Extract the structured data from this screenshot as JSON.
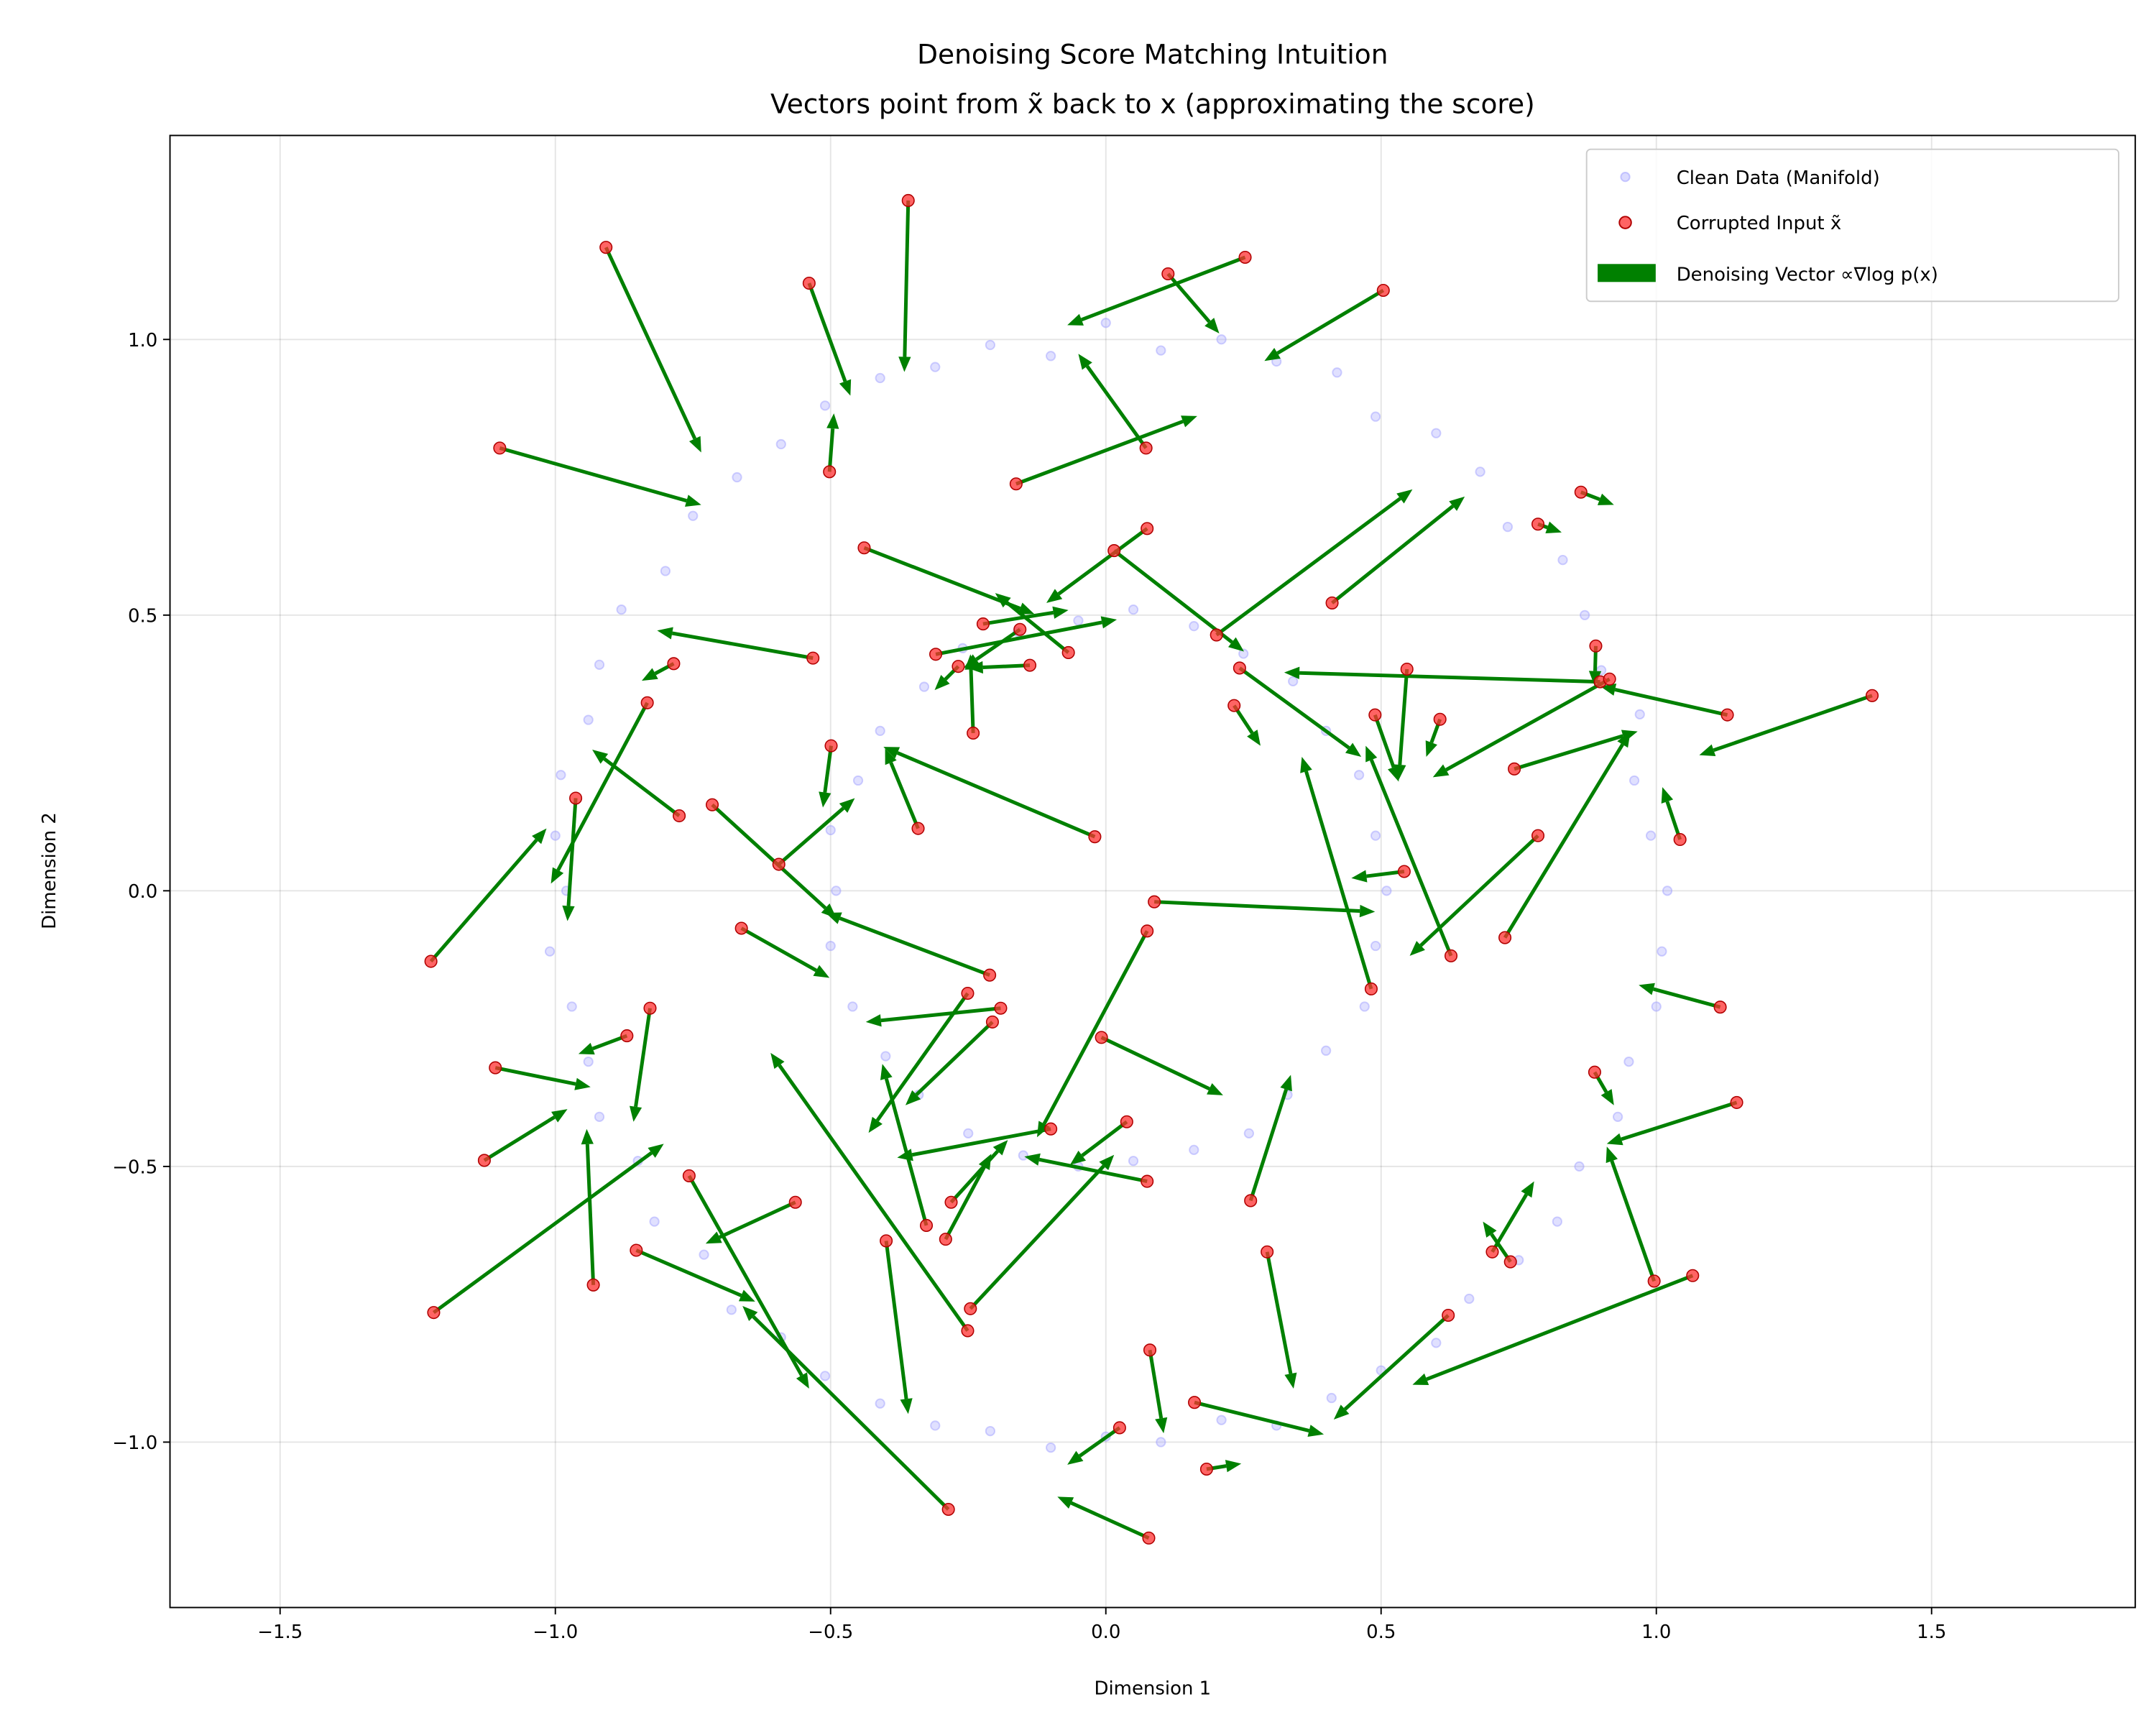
{
  "chart_data": {
    "type": "scatter",
    "title": "Denoising Score Matching Intuition",
    "subtitle": "Vectors point from x̃ back to x (approximating the score)",
    "xlabel": "Dimension 1",
    "ylabel": "Dimension 2",
    "xlim": [
      -1.7,
      1.87
    ],
    "ylim": [
      -1.3,
      1.37
    ],
    "xticks": [
      -1.5,
      -1.0,
      -0.5,
      0.0,
      0.5,
      1.0,
      1.5
    ],
    "xtick_labels": [
      "−1.5",
      "−1.0",
      "−0.5",
      "0.0",
      "0.5",
      "1.0",
      "1.5"
    ],
    "yticks": [
      -1.0,
      -0.5,
      0.0,
      0.5,
      1.0
    ],
    "ytick_labels": [
      "−1.0",
      "−0.5",
      "0.0",
      "0.5",
      "1.0"
    ],
    "grid": true,
    "legend_placement": "top-right",
    "legend": [
      {
        "label": "Clean Data (Manifold)",
        "kind": "point",
        "color": "#aaaaff"
      },
      {
        "label": "Corrupted Input x̃",
        "kind": "point",
        "color": "#ff3333"
      },
      {
        "label": "Denoising Vector ∝∇log p(x)",
        "kind": "patch",
        "color": "#008000"
      }
    ],
    "colors": {
      "clean": "#9999ff",
      "corrupted": "#ff3030",
      "corrupted_edge": "#b00000",
      "vector": "#008000"
    },
    "clean_data": [
      [
        1.02,
        0.0
      ],
      [
        0.99,
        0.1
      ],
      [
        0.96,
        0.2
      ],
      [
        0.97,
        0.32
      ],
      [
        0.9,
        0.4
      ],
      [
        0.87,
        0.5
      ],
      [
        0.83,
        0.6
      ],
      [
        0.73,
        0.66
      ],
      [
        0.68,
        0.76
      ],
      [
        0.6,
        0.83
      ],
      [
        0.49,
        0.86
      ],
      [
        0.42,
        0.94
      ],
      [
        0.31,
        0.96
      ],
      [
        0.21,
        1.0
      ],
      [
        0.1,
        0.98
      ],
      [
        0.0,
        1.03
      ],
      [
        -0.1,
        0.97
      ],
      [
        -0.21,
        0.99
      ],
      [
        -0.31,
        0.95
      ],
      [
        -0.41,
        0.93
      ],
      [
        -0.51,
        0.88
      ],
      [
        -0.59,
        0.81
      ],
      [
        -0.67,
        0.75
      ],
      [
        -0.75,
        0.68
      ],
      [
        -0.8,
        0.58
      ],
      [
        -0.88,
        0.51
      ],
      [
        -0.92,
        0.41
      ],
      [
        -0.94,
        0.31
      ],
      [
        -0.99,
        0.21
      ],
      [
        -1.0,
        0.1
      ],
      [
        -0.98,
        0.0
      ],
      [
        -1.01,
        -0.11
      ],
      [
        -0.97,
        -0.21
      ],
      [
        -0.94,
        -0.31
      ],
      [
        -0.92,
        -0.41
      ],
      [
        -0.85,
        -0.49
      ],
      [
        -0.82,
        -0.6
      ],
      [
        -0.73,
        -0.66
      ],
      [
        -0.68,
        -0.76
      ],
      [
        -0.59,
        -0.81
      ],
      [
        -0.51,
        -0.88
      ],
      [
        -0.41,
        -0.93
      ],
      [
        -0.31,
        -0.97
      ],
      [
        -0.21,
        -0.98
      ],
      [
        -0.1,
        -1.01
      ],
      [
        0.0,
        -0.99
      ],
      [
        0.1,
        -1.0
      ],
      [
        0.21,
        -0.96
      ],
      [
        0.31,
        -0.97
      ],
      [
        0.41,
        -0.92
      ],
      [
        0.5,
        -0.87
      ],
      [
        0.6,
        -0.82
      ],
      [
        0.66,
        -0.74
      ],
      [
        0.75,
        -0.67
      ],
      [
        0.82,
        -0.6
      ],
      [
        0.86,
        -0.5
      ],
      [
        0.93,
        -0.41
      ],
      [
        0.95,
        -0.31
      ],
      [
        1.0,
        -0.21
      ],
      [
        1.01,
        -0.11
      ],
      [
        0.51,
        0.0
      ],
      [
        0.49,
        0.1
      ],
      [
        0.46,
        0.21
      ],
      [
        0.4,
        0.29
      ],
      [
        0.34,
        0.38
      ],
      [
        0.25,
        0.43
      ],
      [
        0.16,
        0.48
      ],
      [
        0.05,
        0.51
      ],
      [
        -0.05,
        0.49
      ],
      [
        -0.16,
        0.47
      ],
      [
        -0.26,
        0.44
      ],
      [
        -0.33,
        0.37
      ],
      [
        -0.41,
        0.29
      ],
      [
        -0.45,
        0.2
      ],
      [
        -0.5,
        0.11
      ],
      [
        -0.49,
        0.0
      ],
      [
        -0.5,
        -0.1
      ],
      [
        -0.46,
        -0.21
      ],
      [
        -0.4,
        -0.3
      ],
      [
        -0.34,
        -0.37
      ],
      [
        -0.25,
        -0.44
      ],
      [
        -0.15,
        -0.48
      ],
      [
        -0.05,
        -0.5
      ],
      [
        0.05,
        -0.49
      ],
      [
        0.16,
        -0.47
      ],
      [
        0.26,
        -0.44
      ],
      [
        0.33,
        -0.37
      ],
      [
        0.4,
        -0.29
      ],
      [
        0.47,
        -0.21
      ],
      [
        0.49,
        -0.1
      ]
    ],
    "vectors": [
      {
        "from": [
          -0.908,
          1.167
        ],
        "to": [
          -0.735,
          0.795
        ]
      },
      {
        "from": [
          -0.359,
          1.252
        ],
        "to": [
          -0.366,
          0.941
        ]
      },
      {
        "from": [
          -0.539,
          1.102
        ],
        "to": [
          -0.464,
          0.898
        ]
      },
      {
        "from": [
          -1.101,
          0.803
        ],
        "to": [
          -0.735,
          0.7
        ]
      },
      {
        "from": [
          -0.502,
          0.76
        ],
        "to": [
          -0.494,
          0.866
        ]
      },
      {
        "from": [
          0.073,
          0.803
        ],
        "to": [
          -0.05,
          0.974
        ]
      },
      {
        "from": [
          -0.163,
          0.738
        ],
        "to": [
          0.166,
          0.861
        ]
      },
      {
        "from": [
          0.113,
          1.119
        ],
        "to": [
          0.206,
          1.011
        ]
      },
      {
        "from": [
          0.253,
          1.149
        ],
        "to": [
          -0.07,
          1.026
        ]
      },
      {
        "from": [
          0.504,
          1.089
        ],
        "to": [
          0.288,
          0.961
        ]
      },
      {
        "from": [
          -0.439,
          0.622
        ],
        "to": [
          -0.13,
          0.502
        ]
      },
      {
        "from": [
          0.075,
          0.657
        ],
        "to": [
          -0.108,
          0.522
        ]
      },
      {
        "from": [
          0.015,
          0.617
        ],
        "to": [
          0.251,
          0.434
        ]
      },
      {
        "from": [
          -0.532,
          0.422
        ],
        "to": [
          -0.815,
          0.472
        ]
      },
      {
        "from": [
          -0.785,
          0.412
        ],
        "to": [
          -0.843,
          0.381
        ]
      },
      {
        "from": [
          -0.833,
          0.341
        ],
        "to": [
          -1.008,
          0.013
        ]
      },
      {
        "from": [
          -0.775,
          0.136
        ],
        "to": [
          -0.933,
          0.256
        ]
      },
      {
        "from": [
          -0.963,
          0.168
        ],
        "to": [
          -0.978,
          -0.055
        ]
      },
      {
        "from": [
          -1.226,
          -0.128
        ],
        "to": [
          -1.016,
          0.113
        ]
      },
      {
        "from": [
          -0.341,
          0.113
        ],
        "to": [
          -0.401,
          0.258
        ]
      },
      {
        "from": [
          -0.02,
          0.098
        ],
        "to": [
          -0.404,
          0.261
        ]
      },
      {
        "from": [
          -0.499,
          0.263
        ],
        "to": [
          -0.514,
          0.151
        ]
      },
      {
        "from": [
          -0.715,
          0.156
        ],
        "to": [
          -0.489,
          -0.05
        ]
      },
      {
        "from": [
          -0.594,
          0.048
        ],
        "to": [
          -0.456,
          0.168
        ]
      },
      {
        "from": [
          -0.211,
          -0.153
        ],
        "to": [
          -0.509,
          -0.04
        ]
      },
      {
        "from": [
          -0.662,
          -0.068
        ],
        "to": [
          -0.502,
          -0.158
        ]
      },
      {
        "from": [
          -0.251,
          -0.186
        ],
        "to": [
          -0.431,
          -0.439
        ]
      },
      {
        "from": [
          -0.191,
          -0.213
        ],
        "to": [
          -0.436,
          -0.238
        ]
      },
      {
        "from": [
          -0.206,
          -0.238
        ],
        "to": [
          -0.364,
          -0.389
        ]
      },
      {
        "from": [
          -0.828,
          -0.213
        ],
        "to": [
          -0.858,
          -0.419
        ]
      },
      {
        "from": [
          -0.87,
          -0.263
        ],
        "to": [
          -0.958,
          -0.296
        ]
      },
      {
        "from": [
          -1.109,
          -0.321
        ],
        "to": [
          -0.936,
          -0.356
        ]
      },
      {
        "from": [
          -1.129,
          -0.489
        ],
        "to": [
          -0.978,
          -0.396
        ]
      },
      {
        "from": [
          -0.931,
          -0.715
        ],
        "to": [
          -0.943,
          -0.432
        ]
      },
      {
        "from": [
          -1.221,
          -0.765
        ],
        "to": [
          -0.803,
          -0.459
        ]
      },
      {
        "from": [
          -0.853,
          -0.652
        ],
        "to": [
          -0.637,
          -0.745
        ]
      },
      {
        "from": [
          -0.757,
          -0.517
        ],
        "to": [
          -0.539,
          -0.903
        ]
      },
      {
        "from": [
          -0.564,
          -0.565
        ],
        "to": [
          -0.727,
          -0.64
        ]
      },
      {
        "from": [
          -0.286,
          -1.122
        ],
        "to": [
          -0.66,
          -0.753
        ]
      },
      {
        "from": [
          -0.399,
          -0.635
        ],
        "to": [
          -0.359,
          -0.949
        ]
      },
      {
        "from": [
          -0.246,
          -0.758
        ],
        "to": [
          0.015,
          -0.479
        ]
      },
      {
        "from": [
          -0.251,
          -0.798
        ],
        "to": [
          -0.609,
          -0.294
        ]
      },
      {
        "from": [
          -0.326,
          -0.607
        ],
        "to": [
          -0.406,
          -0.314
        ]
      },
      {
        "from": [
          -0.291,
          -0.632
        ],
        "to": [
          -0.208,
          -0.477
        ]
      },
      {
        "from": [
          -0.281,
          -0.565
        ],
        "to": [
          -0.178,
          -0.452
        ]
      },
      {
        "from": [
          -0.1,
          -0.432
        ],
        "to": [
          -0.379,
          -0.484
        ]
      },
      {
        "from": [
          0.075,
          -0.527
        ],
        "to": [
          -0.148,
          -0.482
        ]
      },
      {
        "from": [
          0.038,
          -0.419
        ],
        "to": [
          -0.065,
          -0.497
        ]
      },
      {
        "from": [
          -0.008,
          -0.266
        ],
        "to": [
          0.213,
          -0.371
        ]
      },
      {
        "from": [
          0.075,
          -0.073
        ],
        "to": [
          -0.125,
          -0.447
        ]
      },
      {
        "from": [
          0.088,
          -0.02
        ],
        "to": [
          0.489,
          -0.038
        ]
      },
      {
        "from": [
          0.263,
          -0.562
        ],
        "to": [
          0.336,
          -0.334
        ]
      },
      {
        "from": [
          0.293,
          -0.655
        ],
        "to": [
          0.341,
          -0.903
        ]
      },
      {
        "from": [
          0.08,
          -0.833
        ],
        "to": [
          0.105,
          -0.984
        ]
      },
      {
        "from": [
          0.161,
          -0.928
        ],
        "to": [
          0.396,
          -0.986
        ]
      },
      {
        "from": [
          0.622,
          -0.77
        ],
        "to": [
          0.414,
          -0.959
        ]
      },
      {
        "from": [
          1.066,
          -0.698
        ],
        "to": [
          0.557,
          -0.896
        ]
      },
      {
        "from": [
          0.183,
          -1.049
        ],
        "to": [
          0.246,
          -1.039
        ]
      },
      {
        "from": [
          0.078,
          -1.174
        ],
        "to": [
          -0.088,
          -1.099
        ]
      },
      {
        "from": [
          0.025,
          -0.974
        ],
        "to": [
          -0.07,
          -1.041
        ]
      },
      {
        "from": [
          0.702,
          -0.655
        ],
        "to": [
          0.778,
          -0.527
        ]
      },
      {
        "from": [
          0.735,
          -0.673
        ],
        "to": [
          0.685,
          -0.6
        ]
      },
      {
        "from": [
          0.996,
          -0.708
        ],
        "to": [
          0.91,
          -0.464
        ]
      },
      {
        "from": [
          1.146,
          -0.384
        ],
        "to": [
          0.91,
          -0.459
        ]
      },
      {
        "from": [
          0.888,
          -0.329
        ],
        "to": [
          0.923,
          -0.389
        ]
      },
      {
        "from": [
          1.116,
          -0.211
        ],
        "to": [
          0.968,
          -0.171
        ]
      },
      {
        "from": [
          1.043,
          0.093
        ],
        "to": [
          1.011,
          0.188
        ]
      },
      {
        "from": [
          1.129,
          0.319
        ],
        "to": [
          0.898,
          0.371
        ]
      },
      {
        "from": [
          1.392,
          0.354
        ],
        "to": [
          1.078,
          0.246
        ]
      },
      {
        "from": [
          0.725,
          -0.085
        ],
        "to": [
          0.953,
          0.289
        ]
      },
      {
        "from": [
          0.785,
          0.1
        ],
        "to": [
          0.552,
          -0.118
        ]
      },
      {
        "from": [
          0.742,
          0.221
        ],
        "to": [
          0.966,
          0.289
        ]
      },
      {
        "from": [
          0.627,
          -0.118
        ],
        "to": [
          0.472,
          0.263
        ]
      },
      {
        "from": [
          0.482,
          -0.178
        ],
        "to": [
          0.356,
          0.243
        ]
      },
      {
        "from": [
          0.542,
          0.035
        ],
        "to": [
          0.446,
          0.023
        ]
      },
      {
        "from": [
          0.607,
          0.311
        ],
        "to": [
          0.582,
          0.243
        ]
      },
      {
        "from": [
          0.547,
          0.402
        ],
        "to": [
          0.532,
          0.201
        ]
      },
      {
        "from": [
          0.489,
          0.319
        ],
        "to": [
          0.532,
          0.198
        ]
      },
      {
        "from": [
          0.898,
          0.379
        ],
        "to": [
          0.324,
          0.396
        ]
      },
      {
        "from": [
          0.915,
          0.384
        ],
        "to": [
          0.594,
          0.206
        ]
      },
      {
        "from": [
          0.89,
          0.444
        ],
        "to": [
          0.888,
          0.371
        ]
      },
      {
        "from": [
          0.863,
          0.723
        ],
        "to": [
          0.923,
          0.7
        ]
      },
      {
        "from": [
          0.785,
          0.665
        ],
        "to": [
          0.828,
          0.65
        ]
      },
      {
        "from": [
          0.411,
          0.522
        ],
        "to": [
          0.652,
          0.715
        ]
      },
      {
        "from": [
          0.201,
          0.464
        ],
        "to": [
          0.557,
          0.728
        ]
      },
      {
        "from": [
          0.243,
          0.404
        ],
        "to": [
          0.464,
          0.243
        ]
      },
      {
        "from": [
          0.233,
          0.336
        ],
        "to": [
          0.281,
          0.263
        ]
      },
      {
        "from": [
          -0.068,
          0.432
        ],
        "to": [
          -0.201,
          0.54
        ]
      },
      {
        "from": [
          -0.241,
          0.286
        ],
        "to": [
          -0.246,
          0.429
        ]
      },
      {
        "from": [
          -0.309,
          0.429
        ],
        "to": [
          0.02,
          0.492
        ]
      },
      {
        "from": [
          -0.268,
          0.407
        ],
        "to": [
          -0.311,
          0.364
        ]
      },
      {
        "from": [
          -0.223,
          0.484
        ],
        "to": [
          -0.068,
          0.509
        ]
      },
      {
        "from": [
          -0.156,
          0.474
        ],
        "to": [
          -0.258,
          0.404
        ]
      },
      {
        "from": [
          -0.138,
          0.409
        ],
        "to": [
          -0.251,
          0.404
        ]
      }
    ]
  }
}
